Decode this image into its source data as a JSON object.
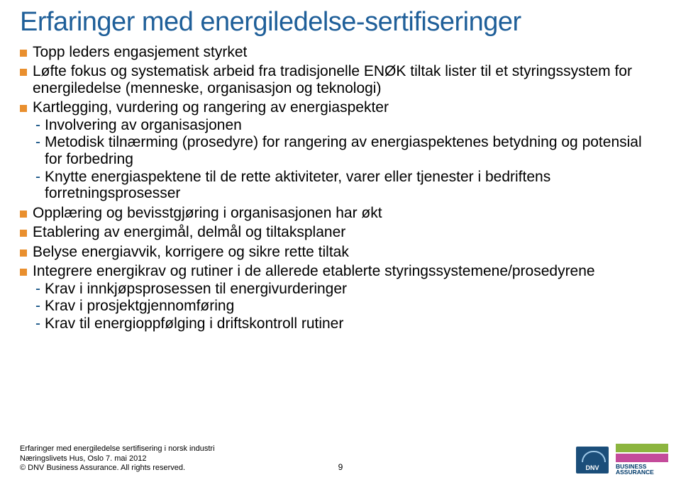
{
  "colors": {
    "title": "#1f5f99",
    "bullet": "#e98f2e",
    "dash": "#00437a"
  },
  "title": "Erfaringer med energiledelse-sertifiseringer",
  "bullets": [
    {
      "level": 1,
      "text": "Topp leders engasjement styrket"
    },
    {
      "level": 1,
      "text": "Løfte fokus og systematisk arbeid fra tradisjonelle ENØK tiltak lister til et styringssystem for energiledelse (menneske, organisasjon og teknologi)"
    },
    {
      "level": 1,
      "text": "Kartlegging, vurdering og rangering av energiaspekter"
    },
    {
      "level": 2,
      "text": "Involvering av organisasjonen"
    },
    {
      "level": 2,
      "text": "Metodisk tilnærming (prosedyre) for rangering av energiaspektenes betydning og potensial for forbedring"
    },
    {
      "level": 2,
      "text": "Knytte energiaspektene til de rette aktiviteter, varer eller tjenester i bedriftens forretningsprosesser"
    },
    {
      "level": 1,
      "text": "Opplæring og bevisstgjøring i organisasjonen har økt"
    },
    {
      "level": 1,
      "text": "Etablering av energimål, delmål og tiltaksplaner"
    },
    {
      "level": 1,
      "text": "Belyse energiavvik, korrigere og sikre rette tiltak"
    },
    {
      "level": 1,
      "text": "Integrere energikrav og rutiner i de allerede etablerte styringssystemene/prosedyrene"
    },
    {
      "level": 2,
      "text": "Krav i innkjøpsprosessen til energivurderinger"
    },
    {
      "level": 2,
      "text": "Krav i prosjektgjennomføring"
    },
    {
      "level": 2,
      "text": "Krav til energioppfølging i driftskontroll rutiner"
    }
  ],
  "footer": {
    "line1": "Erfaringer med energiledelse sertifisering i norsk industri",
    "line2": "Næringslivets Hus, Oslo 7. mai 2012",
    "line3": "© DNV Business Assurance. All rights reserved."
  },
  "page_number": "9",
  "logos": {
    "dnv_label": "DNV",
    "ba_line1": "BUSINESS",
    "ba_line2": "ASSURANCE"
  }
}
